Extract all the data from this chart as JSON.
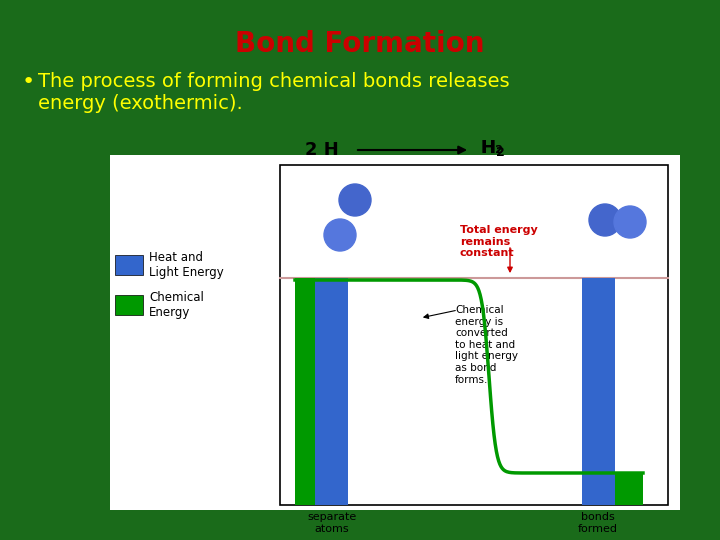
{
  "title": "Bond Formation",
  "title_color": "#cc0000",
  "title_fontsize": 20,
  "background_color": "#1a6b1a",
  "bullet_text": "The process of forming chemical bonds releases\nenergy (exothermic).",
  "bullet_color": "#ffff00",
  "bullet_fontsize": 14,
  "diagram_bg": "#ffffff",
  "blue_color": "#3366cc",
  "green_color": "#009900",
  "red_line_color": "#cc9999",
  "annotation_color": "#cc0000",
  "total_energy_text": "Total energy\nremains\nconstant",
  "chem_text": "Chemical\nenergy is\nconverted\nto heat and\nlight energy\nas bond\nforms.",
  "xlabel_left": "separate\natoms",
  "xlabel_right": "bonds\nformed",
  "reaction_left": "2 H",
  "reaction_right": "H₂"
}
